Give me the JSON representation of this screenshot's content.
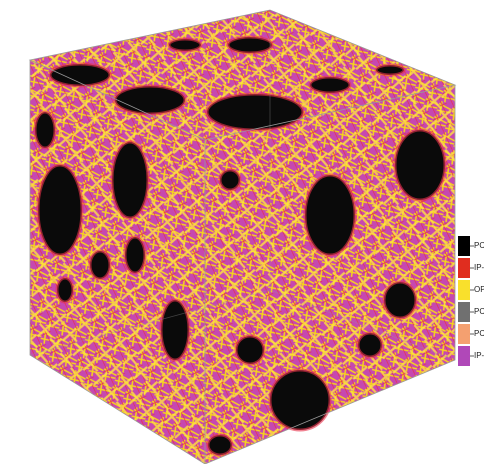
{
  "legend": {
    "items": [
      {
        "label": "PC-S",
        "color": "#000000"
      },
      {
        "label": "IP-IF",
        "color": "#e02d1f"
      },
      {
        "label": "OP-",
        "color": "#f9e02c"
      },
      {
        "label": "PC-I",
        "color": "#707070"
      },
      {
        "label": "PC-(",
        "color": "#f4a070"
      },
      {
        "label": "IP-C",
        "color": "#b048b8"
      }
    ]
  }
}
